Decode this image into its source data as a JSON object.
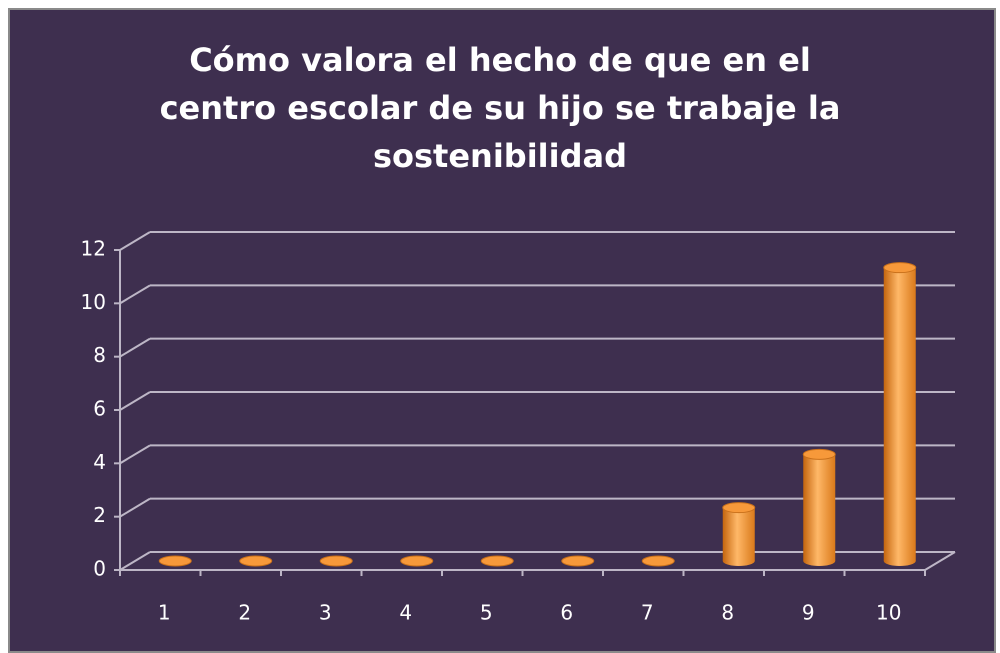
{
  "chart_data": {
    "type": "bar",
    "title": "Cómo valora el hecho de que en el centro escolar de su hijo se trabaje la sostenibilidad",
    "categories": [
      "1",
      "2",
      "3",
      "4",
      "5",
      "6",
      "7",
      "8",
      "9",
      "10"
    ],
    "values": [
      0,
      0,
      0,
      0,
      0,
      0,
      0,
      2,
      4,
      11
    ],
    "color": "#f7993a",
    "ylim": [
      0,
      12
    ],
    "yticks": [
      0,
      2,
      4,
      6,
      8,
      10,
      12
    ],
    "grid": true
  }
}
